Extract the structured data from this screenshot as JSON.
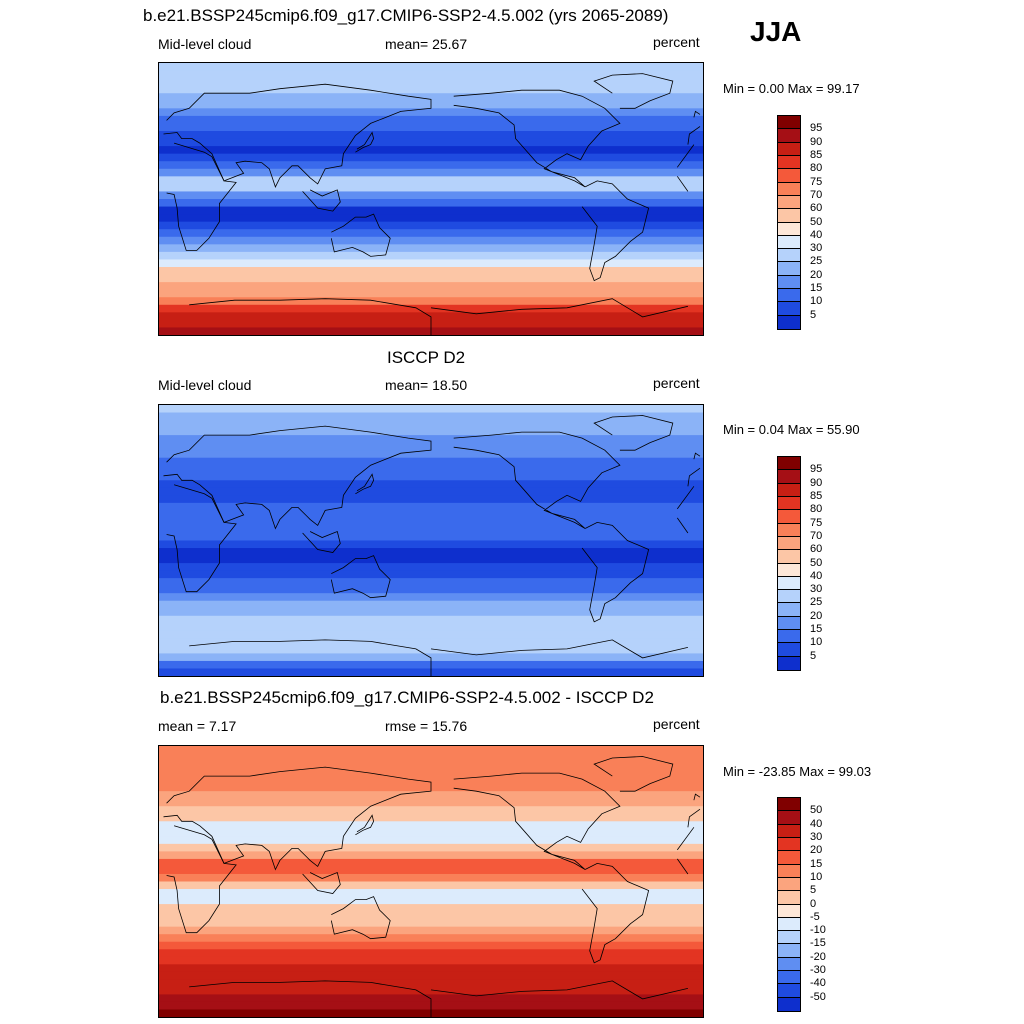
{
  "figure": {
    "season": "JJA",
    "colors": {
      "warm": [
        "#fde7d8",
        "#fcc6a6",
        "#fba47e",
        "#f98058",
        "#f4593a",
        "#e33422",
        "#c71f14",
        "#a50f15",
        "#800000"
      ],
      "cool": [
        "#dcebfc",
        "#b5d2fb",
        "#8bb3f7",
        "#5f8ef2",
        "#3a6aec",
        "#1f4be0",
        "#0e2fcd",
        "#061ea8",
        "#000080"
      ]
    }
  },
  "chart_data": [
    {
      "type": "heatmap",
      "title": "b.e21.BSSP245cmip6.f09_g17.CMIP6-SSP2-4.5.002 (yrs 2065-2089)",
      "left_label": "Mid-level cloud",
      "center_label": "mean=  25.67",
      "right_label": "percent",
      "minmax": "Min =   0.00 Max =  99.17",
      "mean": 25.67,
      "min": 0.0,
      "max": 99.17,
      "levels": [
        "95",
        "90",
        "85",
        "80",
        "75",
        "70",
        "60",
        "50",
        "40",
        "30",
        "25",
        "20",
        "15",
        "10",
        "5"
      ],
      "zonal_profile": [
        {
          "lat": 90,
          "value": 40
        },
        {
          "lat": 70,
          "value": 30
        },
        {
          "lat": 50,
          "value": 18
        },
        {
          "lat": 30,
          "value": 8
        },
        {
          "lat": 10,
          "value": 35
        },
        {
          "lat": -10,
          "value": 6
        },
        {
          "lat": -30,
          "value": 22
        },
        {
          "lat": -45,
          "value": 55
        },
        {
          "lat": -60,
          "value": 62
        },
        {
          "lat": -75,
          "value": 85
        },
        {
          "lat": -90,
          "value": 92
        }
      ]
    },
    {
      "type": "heatmap",
      "title": "ISCCP D2",
      "left_label": "Mid-level cloud",
      "center_label": "mean=  18.50",
      "right_label": "percent",
      "minmax": "Min =   0.04 Max =  55.90",
      "mean": 18.5,
      "min": 0.04,
      "max": 55.9,
      "levels": [
        "95",
        "90",
        "85",
        "80",
        "75",
        "70",
        "60",
        "50",
        "40",
        "30",
        "25",
        "20",
        "15",
        "10",
        "5"
      ],
      "zonal_profile": [
        {
          "lat": 90,
          "value": 32
        },
        {
          "lat": 70,
          "value": 24
        },
        {
          "lat": 50,
          "value": 18
        },
        {
          "lat": 30,
          "value": 12
        },
        {
          "lat": 10,
          "value": 20
        },
        {
          "lat": -10,
          "value": 8
        },
        {
          "lat": -30,
          "value": 18
        },
        {
          "lat": -45,
          "value": 28
        },
        {
          "lat": -60,
          "value": 35
        },
        {
          "lat": -75,
          "value": 30
        },
        {
          "lat": -90,
          "value": 6
        }
      ]
    },
    {
      "type": "heatmap",
      "title": "b.e21.BSSP245cmip6.f09_g17.CMIP6-SSP2-4.5.002 - ISCCP D2",
      "left_label": "mean =   7.17",
      "center_label": "rmse =  15.76",
      "right_label": "percent",
      "minmax": "Min = -23.85 Max =  99.03",
      "mean": 7.17,
      "rmse": 15.76,
      "min": -23.85,
      "max": 99.03,
      "levels": [
        "50",
        "40",
        "30",
        "20",
        "15",
        "10",
        "5",
        "0",
        "-5",
        "-10",
        "-15",
        "-20",
        "-30",
        "-40",
        "-50"
      ],
      "zonal_profile": [
        {
          "lat": 90,
          "value": 10
        },
        {
          "lat": 70,
          "value": 14
        },
        {
          "lat": 50,
          "value": 4
        },
        {
          "lat": 30,
          "value": -4
        },
        {
          "lat": 10,
          "value": 18
        },
        {
          "lat": -10,
          "value": -3
        },
        {
          "lat": -30,
          "value": 6
        },
        {
          "lat": -45,
          "value": 20
        },
        {
          "lat": -60,
          "value": 32
        },
        {
          "lat": -75,
          "value": 40
        },
        {
          "lat": -90,
          "value": 55
        }
      ]
    }
  ]
}
